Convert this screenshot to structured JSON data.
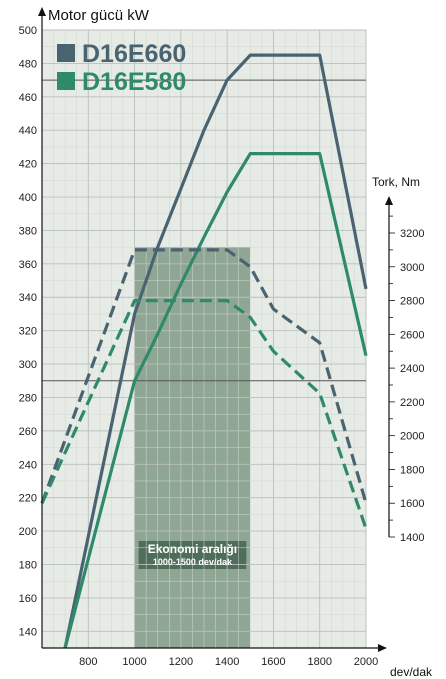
{
  "chart_data": {
    "type": "line",
    "title": "",
    "xlabel": "dev/dak",
    "ylabel_left": "Motor gücü kW",
    "ylabel_right": "Tork, Nm",
    "x_ticks": [
      800,
      1000,
      1200,
      1400,
      1600,
      1800,
      2000
    ],
    "y_left_ticks": [
      140,
      160,
      180,
      200,
      220,
      240,
      260,
      280,
      300,
      320,
      340,
      360,
      380,
      400,
      420,
      440,
      460,
      480,
      500
    ],
    "y_right_ticks": [
      1400,
      1600,
      1800,
      2000,
      2200,
      2400,
      2600,
      2800,
      3000,
      3200
    ],
    "xlim": [
      600,
      2000
    ],
    "ylim_left": [
      130,
      500
    ],
    "ylim_right": [
      1400,
      3400
    ],
    "legend_position": "top-left",
    "series": [
      {
        "name": "D16E660",
        "kind": "power",
        "axis": "left",
        "color": "#4a6371",
        "dash": false,
        "x": [
          700,
          1000,
          1100,
          1200,
          1300,
          1400,
          1500,
          1600,
          1700,
          1800,
          2000
        ],
        "y": [
          130,
          330,
          370,
          405,
          440,
          470,
          485,
          485,
          485,
          485,
          345
        ]
      },
      {
        "name": "D16E580",
        "kind": "power",
        "axis": "left",
        "color": "#2f8a6a",
        "dash": false,
        "x": [
          700,
          1000,
          1100,
          1200,
          1300,
          1400,
          1500,
          1600,
          1700,
          1800,
          2000
        ],
        "y": [
          130,
          290,
          318,
          348,
          376,
          403,
          426,
          426,
          426,
          426,
          305
        ]
      },
      {
        "name": "D16E660",
        "kind": "torque",
        "axis": "right",
        "color": "#4a6371",
        "dash": true,
        "x": [
          600,
          1000,
          1200,
          1400,
          1500,
          1600,
          1800,
          2000
        ],
        "y": [
          1600,
          3100,
          3100,
          3100,
          3000,
          2750,
          2550,
          1600
        ]
      },
      {
        "name": "D16E580",
        "kind": "torque",
        "axis": "right",
        "color": "#2f8a6a",
        "dash": true,
        "x": [
          600,
          1000,
          1200,
          1400,
          1500,
          1600,
          1800,
          2000
        ],
        "y": [
          1600,
          2800,
          2800,
          2800,
          2700,
          2500,
          2250,
          1450
        ]
      }
    ],
    "economy_band": {
      "x_range": [
        1000,
        1500
      ],
      "label": "Ekonomi aralığı",
      "sublabel": "1000-1500 dev/dak",
      "color": "#7f9a86"
    }
  }
}
